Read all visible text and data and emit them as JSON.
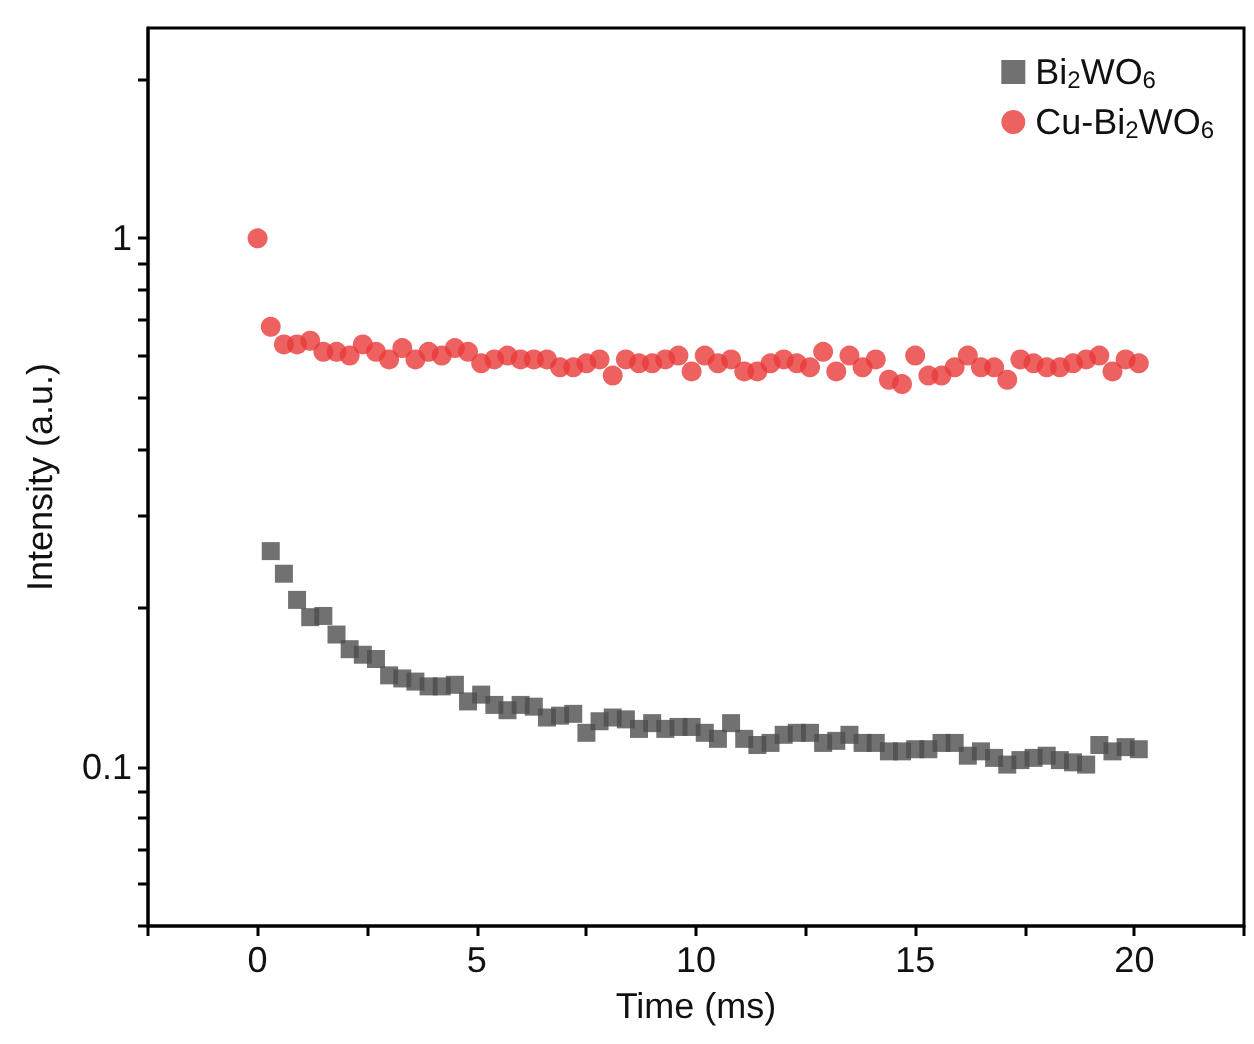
{
  "chart_data": {
    "type": "scatter",
    "xlabel": "Time (ms)",
    "ylabel": "Intensity (a.u.)",
    "log": "y",
    "grid": false,
    "legend": "top right",
    "x": [
      0,
      0.3,
      0.6,
      0.9,
      1.2,
      1.5,
      1.8,
      2.1,
      2.4,
      2.7,
      3.0,
      3.3,
      3.6,
      3.9,
      4.2,
      4.5,
      4.8,
      5.1,
      5.4,
      5.7,
      6.0,
      6.3,
      6.6,
      6.9,
      7.2,
      7.5,
      7.8,
      8.1,
      8.4,
      8.7,
      9.0,
      9.3,
      9.6,
      9.9,
      10.2,
      10.5,
      10.8,
      11.1,
      11.4,
      11.7,
      12.0,
      12.3,
      12.6,
      12.9,
      13.2,
      13.5,
      13.8,
      14.1,
      14.4,
      14.7,
      15.0,
      15.3,
      15.6,
      15.9,
      16.2,
      16.5,
      16.8,
      17.1,
      17.4,
      17.7,
      18.0,
      18.3,
      18.6,
      18.9,
      19.2,
      19.5,
      19.8,
      20.1
    ],
    "xlim": [
      -2.5,
      22.5
    ],
    "xticks": [
      {
        "value": -2.5,
        "label": null
      },
      0,
      {
        "value": 2.5,
        "label": null
      },
      5,
      {
        "value": 7.5,
        "label": null
      },
      10,
      {
        "value": 12.5,
        "label": null
      },
      15,
      {
        "value": 17.5,
        "label": null
      },
      20,
      {
        "value": 22.5,
        "label": null
      }
    ],
    "ylim": [
      0.05,
      2.5
    ],
    "yticks": [
      {
        "value": 0.05,
        "label": null
      },
      {
        "value": 0.06,
        "label": null
      },
      {
        "value": 0.07,
        "label": null
      },
      {
        "value": 0.08,
        "label": null
      },
      {
        "value": 0.09,
        "label": null
      },
      0.1,
      {
        "value": 0.2,
        "label": null
      },
      {
        "value": 0.3,
        "label": null
      },
      {
        "value": 0.4,
        "label": null
      },
      {
        "value": 0.5,
        "label": null
      },
      {
        "value": 0.6,
        "label": null
      },
      {
        "value": 0.7,
        "label": null
      },
      {
        "value": 0.8,
        "label": null
      },
      {
        "value": 0.9,
        "label": null
      },
      1,
      {
        "value": 2,
        "label": null
      }
    ],
    "series": [
      {
        "name": "Bi$_{2}$WO$_{6}$",
        "color": "#4d4d4d",
        "marker": "square",
        "values": [
          null,
          0.256,
          0.232,
          0.207,
          0.192,
          0.193,
          0.178,
          0.167,
          0.163,
          0.16,
          0.149,
          0.147,
          0.145,
          0.142,
          0.142,
          0.143,
          0.133,
          0.137,
          0.131,
          0.128,
          0.131,
          0.13,
          0.124,
          0.125,
          0.126,
          0.116,
          0.122,
          0.124,
          0.123,
          0.118,
          0.121,
          0.118,
          0.119,
          0.119,
          0.116,
          0.113,
          0.121,
          0.113,
          0.11,
          0.111,
          0.115,
          0.116,
          0.116,
          0.111,
          0.112,
          0.115,
          0.111,
          0.111,
          0.107,
          0.107,
          0.108,
          0.108,
          0.111,
          0.111,
          0.105,
          0.107,
          0.104,
          0.101,
          0.103,
          0.104,
          0.105,
          0.103,
          0.102,
          0.101,
          0.11,
          0.107,
          0.109,
          0.108
        ]
      },
      {
        "name": "Cu-Bi$_{2}$WO$_{6}$",
        "color": "#e8393a",
        "marker": "circle",
        "values": [
          1.0,
          0.68,
          0.63,
          0.63,
          0.64,
          0.61,
          0.61,
          0.6,
          0.63,
          0.61,
          0.59,
          0.62,
          0.59,
          0.61,
          0.6,
          0.62,
          0.61,
          0.58,
          0.59,
          0.6,
          0.59,
          0.59,
          0.59,
          0.57,
          0.57,
          0.58,
          0.59,
          0.55,
          0.59,
          0.58,
          0.58,
          0.59,
          0.6,
          0.56,
          0.6,
          0.58,
          0.59,
          0.56,
          0.56,
          0.58,
          0.59,
          0.58,
          0.57,
          0.61,
          0.56,
          0.6,
          0.57,
          0.59,
          0.54,
          0.53,
          0.6,
          0.55,
          0.55,
          0.57,
          0.6,
          0.57,
          0.57,
          0.54,
          0.59,
          0.58,
          0.57,
          0.57,
          0.58,
          0.59,
          0.6,
          0.56,
          0.59,
          0.58
        ]
      }
    ]
  }
}
